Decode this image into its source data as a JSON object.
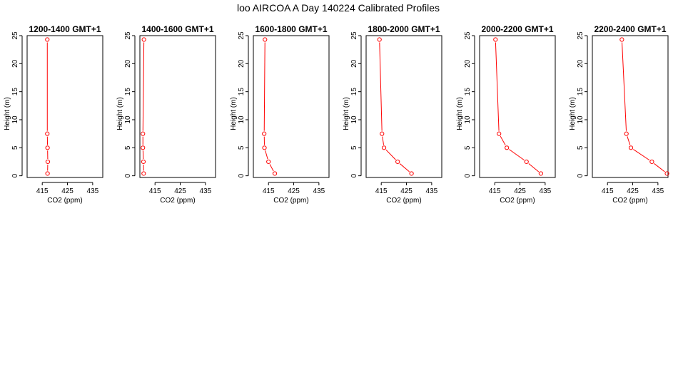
{
  "figure_title": "loo AIRCOA A  Day 140224  Calibrated Profiles",
  "colors": {
    "series": "#ff0000",
    "axis": "#000000",
    "background": "#ffffff"
  },
  "chart_data": [
    {
      "type": "line",
      "title": "1200-1400 GMT+1",
      "xlabel": "CO2 (ppm)",
      "ylabel": "Height (m)",
      "xlim": [
        409,
        439
      ],
      "ylim": [
        -0.3,
        25
      ],
      "xticks": [
        415,
        425,
        435
      ],
      "yticks": [
        0,
        5,
        10,
        15,
        20,
        25
      ],
      "grid": false,
      "points": [
        {
          "x": 417.0,
          "y": 24.3
        },
        {
          "x": 417.0,
          "y": 7.5
        },
        {
          "x": 417.1,
          "y": 5.0
        },
        {
          "x": 417.2,
          "y": 2.5
        },
        {
          "x": 417.1,
          "y": 0.4
        }
      ]
    },
    {
      "type": "line",
      "title": "1400-1600 GMT+1",
      "xlabel": "CO2 (ppm)",
      "ylabel": "Height (m)",
      "xlim": [
        409,
        439
      ],
      "ylim": [
        -0.3,
        25
      ],
      "xticks": [
        415,
        425,
        435
      ],
      "yticks": [
        0,
        5,
        10,
        15,
        20,
        25
      ],
      "grid": false,
      "points": [
        {
          "x": 410.6,
          "y": 24.3
        },
        {
          "x": 410.2,
          "y": 7.5
        },
        {
          "x": 410.2,
          "y": 5.0
        },
        {
          "x": 410.4,
          "y": 2.5
        },
        {
          "x": 410.5,
          "y": 0.4
        }
      ]
    },
    {
      "type": "line",
      "title": "1600-1800 GMT+1",
      "xlabel": "CO2 (ppm)",
      "ylabel": "Height (m)",
      "xlim": [
        409,
        439
      ],
      "ylim": [
        -0.3,
        25
      ],
      "xticks": [
        415,
        425,
        435
      ],
      "yticks": [
        0,
        5,
        10,
        15,
        20,
        25
      ],
      "grid": false,
      "points": [
        {
          "x": 413.6,
          "y": 24.3
        },
        {
          "x": 413.3,
          "y": 7.5
        },
        {
          "x": 413.4,
          "y": 5.0
        },
        {
          "x": 415.0,
          "y": 2.5
        },
        {
          "x": 417.5,
          "y": 0.4
        }
      ]
    },
    {
      "type": "line",
      "title": "1800-2000 GMT+1",
      "xlabel": "CO2 (ppm)",
      "ylabel": "Height (m)",
      "xlim": [
        409,
        439
      ],
      "ylim": [
        -0.3,
        25
      ],
      "xticks": [
        415,
        425,
        435
      ],
      "yticks": [
        0,
        5,
        10,
        15,
        20,
        25
      ],
      "grid": false,
      "points": [
        {
          "x": 414.3,
          "y": 24.3
        },
        {
          "x": 415.3,
          "y": 7.5
        },
        {
          "x": 416.1,
          "y": 5.0
        },
        {
          "x": 421.5,
          "y": 2.5
        },
        {
          "x": 427.0,
          "y": 0.4
        }
      ]
    },
    {
      "type": "line",
      "title": "2000-2200 GMT+1",
      "xlabel": "CO2 (ppm)",
      "ylabel": "Height (m)",
      "xlim": [
        409,
        439
      ],
      "ylim": [
        -0.3,
        25
      ],
      "xticks": [
        415,
        425,
        435
      ],
      "yticks": [
        0,
        5,
        10,
        15,
        20,
        25
      ],
      "grid": false,
      "points": [
        {
          "x": 415.3,
          "y": 24.3
        },
        {
          "x": 416.7,
          "y": 7.5
        },
        {
          "x": 419.8,
          "y": 5.0
        },
        {
          "x": 427.6,
          "y": 2.5
        },
        {
          "x": 433.3,
          "y": 0.4
        }
      ]
    },
    {
      "type": "line",
      "title": "2200-2400 GMT+1",
      "xlabel": "CO2 (ppm)",
      "ylabel": "Height (m)",
      "xlim": [
        409,
        439
      ],
      "ylim": [
        -0.3,
        25
      ],
      "xticks": [
        415,
        425,
        435
      ],
      "yticks": [
        0,
        5,
        10,
        15,
        20,
        25
      ],
      "grid": false,
      "points": [
        {
          "x": 420.7,
          "y": 24.3
        },
        {
          "x": 422.5,
          "y": 7.5
        },
        {
          "x": 424.3,
          "y": 5.0
        },
        {
          "x": 432.6,
          "y": 2.5
        },
        {
          "x": 438.6,
          "y": 0.4
        }
      ]
    }
  ]
}
